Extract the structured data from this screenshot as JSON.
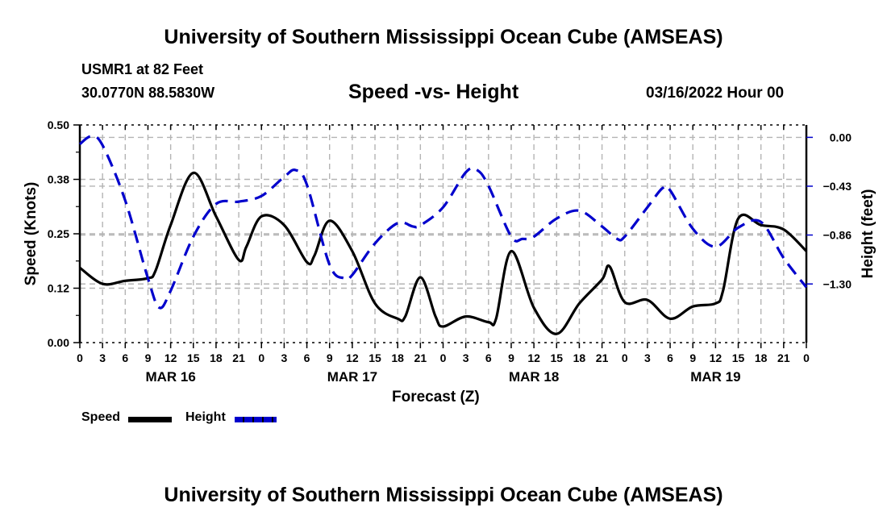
{
  "header": {
    "main_title": "University of Southern Mississippi Ocean Cube (AMSEAS)",
    "station": "USMR1 at 82 Feet",
    "coordinates": "30.0770N  88.5830W",
    "subtitle": "Speed -vs- Height",
    "datetime": "03/16/2022 Hour 00"
  },
  "footer": {
    "title": "University of Southern Mississippi Ocean Cube (AMSEAS)"
  },
  "legend": {
    "items": [
      {
        "label": "Speed",
        "color": "#000000",
        "style": "solid"
      },
      {
        "label": "Height",
        "color": "#0000cc",
        "style": "dashed"
      }
    ]
  },
  "chart_data": {
    "type": "line",
    "title": "Speed -vs- Height",
    "xlabel": "Forecast (Z)",
    "ylabel": "Speed (Knots)",
    "y2label": "Height (feet)",
    "xlim": [
      0,
      96
    ],
    "ylim": [
      0,
      0.5
    ],
    "y2lim": [
      -1.82,
      0.11
    ],
    "grid": true,
    "legend_position": "bottom-left",
    "x_ticks": [
      0,
      3,
      6,
      9,
      12,
      15,
      18,
      21,
      24,
      27,
      30,
      33,
      36,
      39,
      42,
      45,
      48,
      51,
      54,
      57,
      60,
      63,
      66,
      69,
      72,
      75,
      78,
      81,
      84,
      87,
      90,
      93,
      96
    ],
    "x_tick_labels": [
      "0",
      "3",
      "6",
      "9",
      "12",
      "15",
      "18",
      "21",
      "0",
      "3",
      "6",
      "9",
      "12",
      "15",
      "18",
      "21",
      "0",
      "3",
      "6",
      "9",
      "12",
      "15",
      "18",
      "21",
      "0",
      "3",
      "6",
      "9",
      "12",
      "15",
      "18",
      "21",
      "0"
    ],
    "date_labels": [
      {
        "label": "MAR 16",
        "hour": 12
      },
      {
        "label": "MAR 17",
        "hour": 36
      },
      {
        "label": "MAR 18",
        "hour": 60
      },
      {
        "label": "MAR 19",
        "hour": 84
      }
    ],
    "y_ticks": [
      0.0,
      0.125,
      0.25,
      0.375,
      0.5
    ],
    "y_tick_labels": [
      "0.00",
      "0.12",
      "0.25",
      "0.38",
      "0.50"
    ],
    "y2_ticks": [
      0.0,
      -0.433,
      -0.866,
      -1.3
    ],
    "y2_tick_labels": [
      "0.00",
      "-0.43",
      "-0.86",
      "-1.30"
    ],
    "series": [
      {
        "name": "Speed",
        "axis": "left",
        "color": "#000000",
        "style": "solid",
        "x": [
          0,
          3,
          6,
          9,
          10,
          12,
          15,
          18,
          21,
          22,
          24,
          27,
          30,
          31,
          33,
          36,
          39,
          42,
          43,
          45,
          47,
          48,
          51,
          54,
          55,
          57,
          60,
          63,
          66,
          69,
          70,
          72,
          75,
          78,
          81,
          84,
          85,
          87,
          90,
          93,
          96
        ],
        "values": [
          0.172,
          0.135,
          0.142,
          0.148,
          0.165,
          0.27,
          0.39,
          0.29,
          0.19,
          0.22,
          0.29,
          0.27,
          0.185,
          0.2,
          0.28,
          0.21,
          0.09,
          0.055,
          0.06,
          0.15,
          0.06,
          0.037,
          0.06,
          0.047,
          0.055,
          0.21,
          0.08,
          0.02,
          0.09,
          0.145,
          0.175,
          0.093,
          0.098,
          0.055,
          0.083,
          0.09,
          0.12,
          0.285,
          0.27,
          0.26,
          0.21
        ]
      },
      {
        "name": "Height",
        "axis": "right",
        "color": "#0000cc",
        "style": "dashed",
        "x": [
          0,
          1.5,
          3,
          6,
          9,
          10.5,
          12,
          15,
          18,
          21,
          24,
          27,
          28.5,
          30,
          33,
          35,
          36,
          39,
          42,
          44,
          45,
          48,
          51,
          52.5,
          54,
          57,
          58.5,
          60,
          63,
          66,
          69,
          71,
          72,
          75,
          77,
          78,
          81,
          84,
          87,
          90,
          93,
          96
        ],
        "values": [
          -0.06,
          0.01,
          -0.07,
          -0.56,
          -1.25,
          -1.51,
          -1.36,
          -0.88,
          -0.59,
          -0.57,
          -0.52,
          -0.35,
          -0.29,
          -0.42,
          -1.13,
          -1.25,
          -1.22,
          -0.94,
          -0.76,
          -0.79,
          -0.78,
          -0.62,
          -0.31,
          -0.29,
          -0.43,
          -0.88,
          -0.9,
          -0.88,
          -0.72,
          -0.65,
          -0.79,
          -0.9,
          -0.88,
          -0.62,
          -0.45,
          -0.47,
          -0.81,
          -0.97,
          -0.8,
          -0.75,
          -1.07,
          -1.33
        ]
      }
    ]
  }
}
